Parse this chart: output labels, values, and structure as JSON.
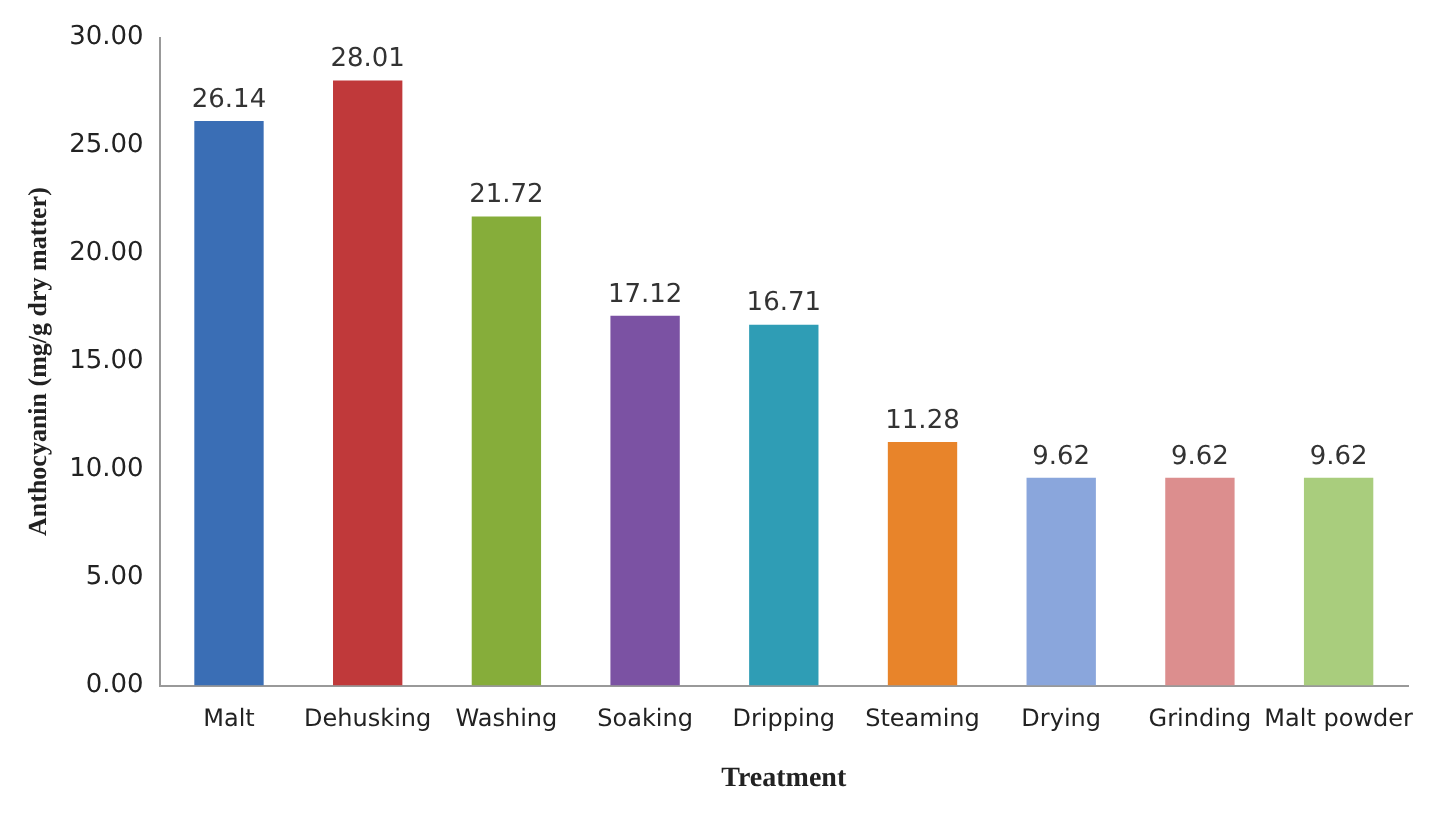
{
  "chart_data": {
    "type": "bar",
    "xlabel": "Treatment",
    "ylabel": "Anthocyanin (mg/g dry matter)",
    "categories": [
      "Malt",
      "Dehusking",
      "Washing",
      "Soaking",
      "Dripping",
      "Steaming",
      "Drying",
      "Grinding",
      "Malt powder"
    ],
    "values": [
      26.14,
      28.01,
      21.72,
      17.12,
      16.71,
      11.28,
      9.62,
      9.62,
      9.62
    ],
    "colors": [
      "#3a6eb5",
      "#c0393a",
      "#86ad3a",
      "#7b52a3",
      "#2f9db5",
      "#e8842a",
      "#8aa6dc",
      "#dc8e8e",
      "#a9cd7d"
    ],
    "ylim": [
      0,
      30
    ],
    "yticks": [
      {
        "value": 0,
        "label": "0.00"
      },
      {
        "value": 5,
        "label": "5.00"
      },
      {
        "value": 10,
        "label": "10.00"
      },
      {
        "value": 15,
        "label": "15.00"
      },
      {
        "value": 20,
        "label": "20.00"
      },
      {
        "value": 25,
        "label": "25.00"
      },
      {
        "value": 30,
        "label": "30.00"
      }
    ],
    "data_labels": true,
    "grid": false,
    "legend": false
  }
}
